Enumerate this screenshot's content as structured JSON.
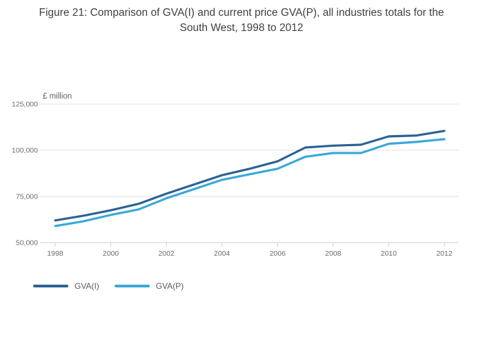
{
  "title": "Figure 21: Comparison of GVA(I) and current price GVA(P), all industries totals for the South West, 1998 to 2012",
  "chart_data": {
    "type": "line",
    "title": "Figure 21: Comparison of GVA(I) and current price GVA(P), all industries totals for the South West, 1998 to 2012",
    "unit_label": "£ million",
    "x": [
      1998,
      1999,
      2000,
      2001,
      2002,
      2003,
      2004,
      2005,
      2006,
      2007,
      2008,
      2009,
      2010,
      2011,
      2012
    ],
    "x_tick_years": [
      "1998",
      "2000",
      "2002",
      "2004",
      "2006",
      "2008",
      "2010",
      "2012"
    ],
    "y_ticks": [
      50000,
      75000,
      100000,
      125000
    ],
    "y_tick_labels": [
      "50,000",
      "75,000",
      "100,000",
      "125,000"
    ],
    "ylim": [
      50000,
      125000
    ],
    "xlim": [
      1998,
      2012
    ],
    "grid": true,
    "legend_position": "bottom-left",
    "grid_color": "#e2e2e2",
    "axis_color": "#c4d1e0",
    "tick_text_color": "#6b6b6b",
    "series": [
      {
        "name": "GVA(I)",
        "color": "#2c6294",
        "values": [
          62000,
          64500,
          67500,
          71000,
          76500,
          81500,
          86500,
          90000,
          94000,
          101500,
          102500,
          103000,
          107500,
          108000,
          110500
        ]
      },
      {
        "name": "GVA(P)",
        "color": "#3aa8d8",
        "values": [
          59000,
          61500,
          65000,
          68000,
          74000,
          79000,
          84000,
          87000,
          90000,
          96500,
          98500,
          98500,
          103500,
          104500,
          106000
        ]
      }
    ]
  }
}
